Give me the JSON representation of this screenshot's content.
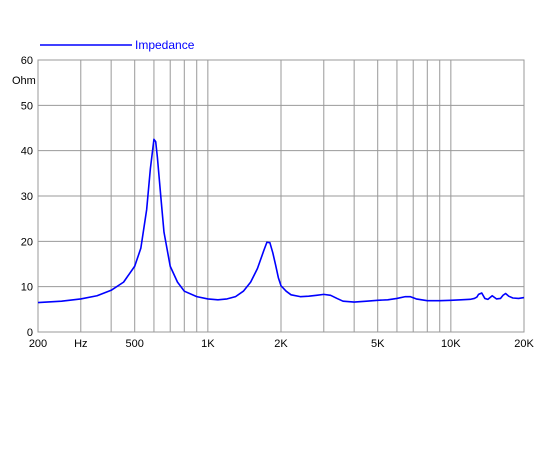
{
  "colors": {
    "series": "#0000ff",
    "grid": "#999999",
    "axis": "#000000",
    "background": "#ffffff"
  },
  "chart_data": {
    "type": "line",
    "title": "",
    "xlabel": "",
    "ylabel": "",
    "x_scale": "log",
    "xlim": [
      200,
      20000
    ],
    "ylim": [
      0,
      60
    ],
    "y_unit": "Ohm",
    "x_unit": "Hz",
    "grid": true,
    "legend_placement": "top-left",
    "x_tick_labels": [
      {
        "value": 200,
        "label": "200"
      },
      {
        "value": 500,
        "label": "500"
      },
      {
        "value": 1000,
        "label": "1K"
      },
      {
        "value": 2000,
        "label": "2K"
      },
      {
        "value": 5000,
        "label": "5K"
      },
      {
        "value": 10000,
        "label": "10K"
      },
      {
        "value": 20000,
        "label": "20K"
      }
    ],
    "x_unit_position": 300,
    "x_gridlines": [
      300,
      400,
      500,
      600,
      700,
      800,
      900,
      1000,
      2000,
      3000,
      4000,
      5000,
      6000,
      7000,
      8000,
      9000,
      10000,
      20000
    ],
    "y_ticks": [
      0,
      10,
      20,
      30,
      40,
      50,
      60
    ],
    "series": [
      {
        "name": "Impedance",
        "x": [
          200,
          250,
          300,
          350,
          400,
          450,
          500,
          530,
          560,
          580,
          600,
          610,
          620,
          640,
          660,
          700,
          750,
          800,
          900,
          1000,
          1100,
          1200,
          1300,
          1400,
          1500,
          1600,
          1700,
          1750,
          1800,
          1850,
          1900,
          1950,
          2000,
          2100,
          2200,
          2400,
          2600,
          2800,
          3000,
          3200,
          3400,
          3600,
          4000,
          4500,
          5000,
          5500,
          6000,
          6500,
          6800,
          7200,
          8000,
          9000,
          10000,
          11000,
          12000,
          12500,
          12800,
          13000,
          13400,
          13800,
          14200,
          14800,
          15400,
          16000,
          16400,
          16800,
          17300,
          18000,
          19000,
          20000
        ],
        "y": [
          6.5,
          6.8,
          7.3,
          8.0,
          9.2,
          11.0,
          14.5,
          18.5,
          27.0,
          36.0,
          42.5,
          42.0,
          38.5,
          30.0,
          22.0,
          14.5,
          11.0,
          9.0,
          7.8,
          7.3,
          7.1,
          7.3,
          7.8,
          9.0,
          11.0,
          14.0,
          18.0,
          19.8,
          19.7,
          17.5,
          14.8,
          12.0,
          10.2,
          9.0,
          8.2,
          7.8,
          7.9,
          8.1,
          8.3,
          8.1,
          7.4,
          6.8,
          6.6,
          6.8,
          7.0,
          7.1,
          7.4,
          7.8,
          7.8,
          7.3,
          6.9,
          6.9,
          7.0,
          7.1,
          7.2,
          7.4,
          7.7,
          8.3,
          8.6,
          7.4,
          7.2,
          8.0,
          7.3,
          7.4,
          8.1,
          8.5,
          7.9,
          7.5,
          7.4,
          7.6
        ]
      }
    ]
  }
}
